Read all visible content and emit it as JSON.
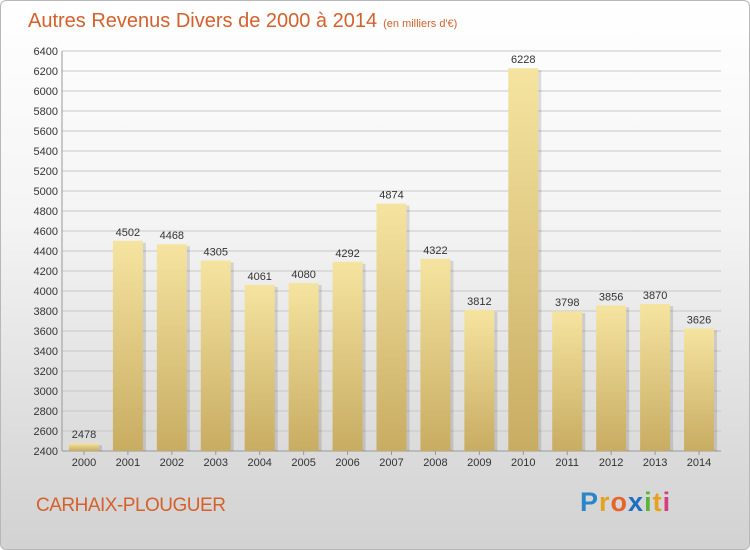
{
  "chart_data": {
    "type": "bar",
    "title": "Autres Revenus Divers de 2000 à 2014",
    "subtitle": "(en milliers d'€)",
    "categories": [
      "2000",
      "2001",
      "2002",
      "2003",
      "2004",
      "2005",
      "2006",
      "2007",
      "2008",
      "2009",
      "2010",
      "2011",
      "2012",
      "2013",
      "2014"
    ],
    "values": [
      2478,
      4502,
      4468,
      4305,
      4061,
      4080,
      4292,
      4874,
      4322,
      3812,
      6228,
      3798,
      3856,
      3870,
      3626
    ],
    "ylim": [
      2400,
      6400
    ],
    "ytick_step": 200,
    "grid": true,
    "data_labels": true,
    "colors": {
      "bar_top": "#f5e4a0",
      "bar_bottom": "#c8ac62",
      "title": "#d6602a",
      "grid": "#c8c8c8"
    }
  },
  "footer": {
    "city": "CARHAIX-PLOUGUER",
    "logo": [
      "P",
      "r",
      "o",
      "x",
      "i",
      "t",
      "i"
    ]
  }
}
